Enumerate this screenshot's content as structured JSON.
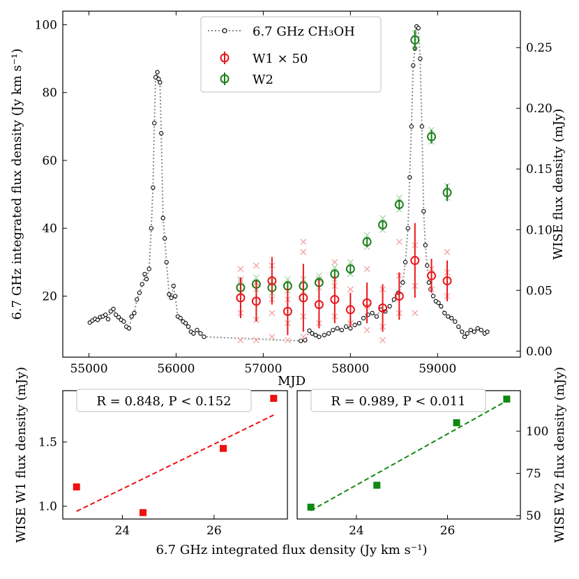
{
  "chart_data": [
    {
      "type": "scatter",
      "xlabel": "MJD",
      "ylabel": "6.7 GHz integrated flux density (Jy km s⁻¹)",
      "ylabel_right": "WISE flux density (mJy)",
      "xlim": [
        54700,
        59950
      ],
      "ylim": [
        2,
        104
      ],
      "ylim_right": [
        -0.005,
        0.28
      ],
      "x_ticks": [
        55000,
        56000,
        57000,
        58000,
        59000
      ],
      "x_tick_labels": [
        "55000",
        "56000",
        "57000",
        "58000",
        "59000"
      ],
      "y_ticks": [
        20,
        40,
        60,
        80,
        100
      ],
      "y_tick_labels": [
        "20",
        "40",
        "60",
        "80",
        "100"
      ],
      "y_right_ticks": [
        0.0,
        0.05,
        0.1,
        0.15,
        0.2,
        0.25
      ],
      "y_right_tick_labels": [
        "0.00",
        "0.05",
        "0.10",
        "0.15",
        "0.20",
        "0.25"
      ],
      "legend": {
        "placement": "top-center",
        "entries": [
          "6.7 GHz CH₃OH",
          "W1 × 50",
          "W2"
        ]
      },
      "series": [
        {
          "name": "6.7 GHz CH₃OH",
          "color": "#000000",
          "points": [
            [
              55010,
              12.2
            ],
            [
              55040,
              12.8
            ],
            [
              55070,
              13.3
            ],
            [
              55100,
              13.0
            ],
            [
              55130,
              13.8
            ],
            [
              55160,
              14.0
            ],
            [
              55190,
              14.5
            ],
            [
              55220,
              13.2
            ],
            [
              55250,
              15.5
            ],
            [
              55280,
              16.2
            ],
            [
              55310,
              14.5
            ],
            [
              55340,
              13.8
            ],
            [
              55370,
              13.0
            ],
            [
              55400,
              12.5
            ],
            [
              55430,
              11.0
            ],
            [
              55460,
              10.5
            ],
            [
              55490,
              14.0
            ],
            [
              55520,
              15.0
            ],
            [
              55550,
              19.0
            ],
            [
              55580,
              21.0
            ],
            [
              55610,
              23.5
            ],
            [
              55640,
              26.5
            ],
            [
              55660,
              25.0
            ],
            [
              55690,
              28.0
            ],
            [
              55715,
              40.0
            ],
            [
              55735,
              52.0
            ],
            [
              55750,
              71.0
            ],
            [
              55765,
              84.5
            ],
            [
              55785,
              86.0
            ],
            [
              55800,
              84.0
            ],
            [
              55815,
              83.0
            ],
            [
              55830,
              68.0
            ],
            [
              55850,
              43.0
            ],
            [
              55870,
              37.0
            ],
            [
              55890,
              30.0
            ],
            [
              55920,
              20.5
            ],
            [
              55945,
              19.5
            ],
            [
              55970,
              23.0
            ],
            [
              55990,
              20.0
            ],
            [
              56020,
              14.0
            ],
            [
              56050,
              13.5
            ],
            [
              56080,
              12.5
            ],
            [
              56110,
              12.0
            ],
            [
              56140,
              11.0
            ],
            [
              56170,
              9.5
            ],
            [
              56200,
              9.0
            ],
            [
              56240,
              10.0
            ],
            [
              56280,
              9.0
            ],
            [
              56320,
              8.0
            ],
            [
              57430,
              6.8
            ],
            [
              57480,
              7.0
            ],
            [
              57530,
              9.8
            ],
            [
              57560,
              9.0
            ],
            [
              57600,
              8.5
            ],
            [
              57640,
              8.0
            ],
            [
              57700,
              8.5
            ],
            [
              57750,
              9.0
            ],
            [
              57800,
              10.0
            ],
            [
              57850,
              10.5
            ],
            [
              57900,
              10.0
            ],
            [
              57950,
              11.0
            ],
            [
              58000,
              10.5
            ],
            [
              58050,
              11.5
            ],
            [
              58100,
              12.0
            ],
            [
              58150,
              13.5
            ],
            [
              58200,
              14.5
            ],
            [
              58250,
              15.0
            ],
            [
              58300,
              14.0
            ],
            [
              58350,
              16.0
            ],
            [
              58400,
              15.5
            ],
            [
              58450,
              17.0
            ],
            [
              58500,
              19.0
            ],
            [
              58550,
              21.0
            ],
            [
              58600,
              24.0
            ],
            [
              58630,
              30.0
            ],
            [
              58660,
              40.0
            ],
            [
              58680,
              55.0
            ],
            [
              58700,
              70.0
            ],
            [
              58720,
              88.0
            ],
            [
              58740,
              93.0
            ],
            [
              58760,
              99.5
            ],
            [
              58780,
              99.0
            ],
            [
              58800,
              90.0
            ],
            [
              58820,
              70.0
            ],
            [
              58840,
              45.0
            ],
            [
              58860,
              35.0
            ],
            [
              58880,
              29.0
            ],
            [
              58900,
              24.0
            ],
            [
              58920,
              22.0
            ],
            [
              58950,
              20.0
            ],
            [
              58980,
              18.5
            ],
            [
              59010,
              18.0
            ],
            [
              59040,
              17.0
            ],
            [
              59080,
              15.0
            ],
            [
              59120,
              14.0
            ],
            [
              59160,
              13.5
            ],
            [
              59200,
              12.5
            ],
            [
              59240,
              11.0
            ],
            [
              59280,
              9.5
            ],
            [
              59310,
              8.0
            ],
            [
              59340,
              9.0
            ],
            [
              59380,
              10.0
            ],
            [
              59420,
              9.5
            ],
            [
              59460,
              10.5
            ],
            [
              59500,
              10.0
            ],
            [
              59540,
              9.0
            ],
            [
              59570,
              9.5
            ]
          ]
        },
        {
          "name": "W1 × 50",
          "color": "#e8161b",
          "points": [
            [
              56740,
              19.5,
              6.0
            ],
            [
              56920,
              18.5,
              6.0
            ],
            [
              57100,
              24.5,
              7.0
            ],
            [
              57280,
              15.5,
              7.0
            ],
            [
              57460,
              19.5,
              10.0
            ],
            [
              57640,
              17.5,
              7.0
            ],
            [
              57820,
              19.0,
              7.0
            ],
            [
              58000,
              16.0,
              5.0
            ],
            [
              58190,
              18.0,
              6.0
            ],
            [
              58370,
              16.5,
              7.0
            ],
            [
              58560,
              20.0,
              7.0
            ],
            [
              58740,
              30.5,
              11.0
            ],
            [
              58930,
              26.0,
              5.0
            ],
            [
              59110,
              24.5,
              6.0
            ]
          ],
          "samples": [
            [
              56740,
              28
            ],
            [
              56740,
              25
            ],
            [
              56740,
              15
            ],
            [
              56740,
              7
            ],
            [
              56920,
              29
            ],
            [
              56920,
              24
            ],
            [
              56920,
              13
            ],
            [
              56920,
              7
            ],
            [
              57100,
              29
            ],
            [
              57100,
              19
            ],
            [
              57100,
              15
            ],
            [
              57100,
              8
            ],
            [
              57280,
              19
            ],
            [
              57280,
              12
            ],
            [
              57280,
              7
            ],
            [
              57460,
              36
            ],
            [
              57460,
              33
            ],
            [
              57460,
              25
            ],
            [
              57460,
              14
            ],
            [
              57460,
              8
            ],
            [
              57640,
              25
            ],
            [
              57640,
              12
            ],
            [
              57820,
              30
            ],
            [
              57820,
              23
            ],
            [
              57820,
              14
            ],
            [
              58000,
              22
            ],
            [
              58000,
              12
            ],
            [
              58190,
              28
            ],
            [
              58190,
              17
            ],
            [
              58190,
              10
            ],
            [
              58370,
              22
            ],
            [
              58370,
              11
            ],
            [
              58370,
              7
            ],
            [
              58560,
              36
            ],
            [
              58560,
              26
            ],
            [
              58560,
              15
            ],
            [
              58740,
              35
            ],
            [
              58740,
              23
            ],
            [
              58740,
              15
            ],
            [
              58930,
              28
            ],
            [
              58930,
              22
            ],
            [
              59110,
              33
            ],
            [
              59110,
              27
            ],
            [
              59110,
              20
            ]
          ]
        },
        {
          "name": "W2",
          "color": "#1a7f1a",
          "points": [
            [
              56740,
              22.5,
              1.5
            ],
            [
              56920,
              23.5,
              1.5
            ],
            [
              57100,
              22.5,
              1.5
            ],
            [
              57280,
              23.0,
              1.5
            ],
            [
              57460,
              23.0,
              1.5
            ],
            [
              57640,
              24.0,
              1.5
            ],
            [
              57820,
              26.5,
              1.5
            ],
            [
              58000,
              28.0,
              1.5
            ],
            [
              58190,
              36.0,
              1.5
            ],
            [
              58370,
              41.0,
              1.5
            ],
            [
              58560,
              47.0,
              1.5
            ],
            [
              58740,
              95.5,
              3.0
            ],
            [
              58930,
              67.0,
              2.0
            ],
            [
              59110,
              50.5,
              2.5
            ]
          ]
        }
      ]
    },
    {
      "type": "scatter",
      "title": "R = 0.848, P < 0.152",
      "xlabel": "",
      "ylabel": "WISE W1 flux density (mJy)",
      "xlim": [
        22.7,
        27.6
      ],
      "ylim": [
        0.9,
        1.9
      ],
      "x_ticks": [
        24,
        26
      ],
      "x_tick_labels": [
        "24",
        "26"
      ],
      "y_ticks": [
        1.0,
        1.5
      ],
      "y_tick_labels": [
        "1.0",
        "1.5"
      ],
      "color": "#ee1111",
      "x": [
        23.0,
        24.45,
        26.2,
        27.3
      ],
      "y": [
        1.15,
        0.95,
        1.45,
        1.84
      ],
      "fit": {
        "x": [
          23.0,
          27.3
        ],
        "y": [
          0.96,
          1.71
        ]
      }
    },
    {
      "type": "scatter",
      "title": "R = 0.989, P < 0.011",
      "xlabel": "6.7 GHz integrated flux density (Jy km s⁻¹)",
      "ylabel": "WISE W2 flux density (mJy)",
      "xlim": [
        22.7,
        27.6
      ],
      "ylim": [
        48,
        124
      ],
      "y_ticks": [
        50,
        75,
        100
      ],
      "y_tick_labels": [
        "50",
        "75",
        "100"
      ],
      "x_ticks": [
        24,
        26
      ],
      "x_tick_labels": [
        "24",
        "26"
      ],
      "color": "#118811",
      "x": [
        23.0,
        24.45,
        26.2,
        27.3
      ],
      "y": [
        55,
        68,
        105,
        119
      ],
      "fit": {
        "x": [
          23.0,
          27.3
        ],
        "y": [
          53,
          118
        ]
      }
    }
  ]
}
